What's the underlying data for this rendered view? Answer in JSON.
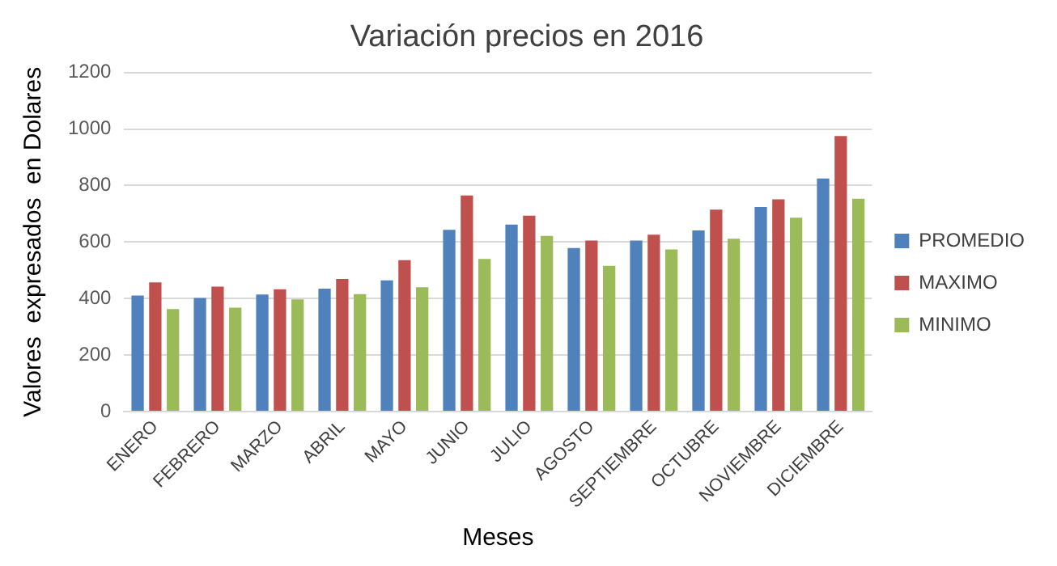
{
  "chart_data": {
    "type": "bar",
    "title": "Variación precios en 2016",
    "xlabel": "Meses",
    "ylabel": "Valores  expresados  en Dolares",
    "categories": [
      "ENERO",
      "FEBRERO",
      "MARZO",
      "ABRIL",
      "MAYO",
      "JUNIO",
      "JULIO",
      "AGOSTO",
      "SEPTIEMBRE",
      "OCTUBRE",
      "NOVIEMBRE",
      "DICIEMBRE"
    ],
    "series": [
      {
        "name": "PROMEDIO",
        "color": "#4f81bd",
        "values": [
          411,
          402,
          414,
          435,
          464,
          643,
          662,
          579,
          605,
          641,
          724,
          825
        ]
      },
      {
        "name": "MAXIMO",
        "color": "#c0504d",
        "values": [
          457,
          442,
          433,
          469,
          536,
          765,
          693,
          605,
          626,
          715,
          751,
          975
        ]
      },
      {
        "name": "MINIMO",
        "color": "#9bbb59",
        "values": [
          363,
          368,
          397,
          416,
          440,
          540,
          622,
          516,
          574,
          612,
          686,
          753
        ]
      }
    ],
    "ylim": [
      0,
      1200
    ],
    "yticks": [
      0,
      200,
      400,
      600,
      800,
      1000,
      1200
    ],
    "grid": "y",
    "legend": "right"
  }
}
